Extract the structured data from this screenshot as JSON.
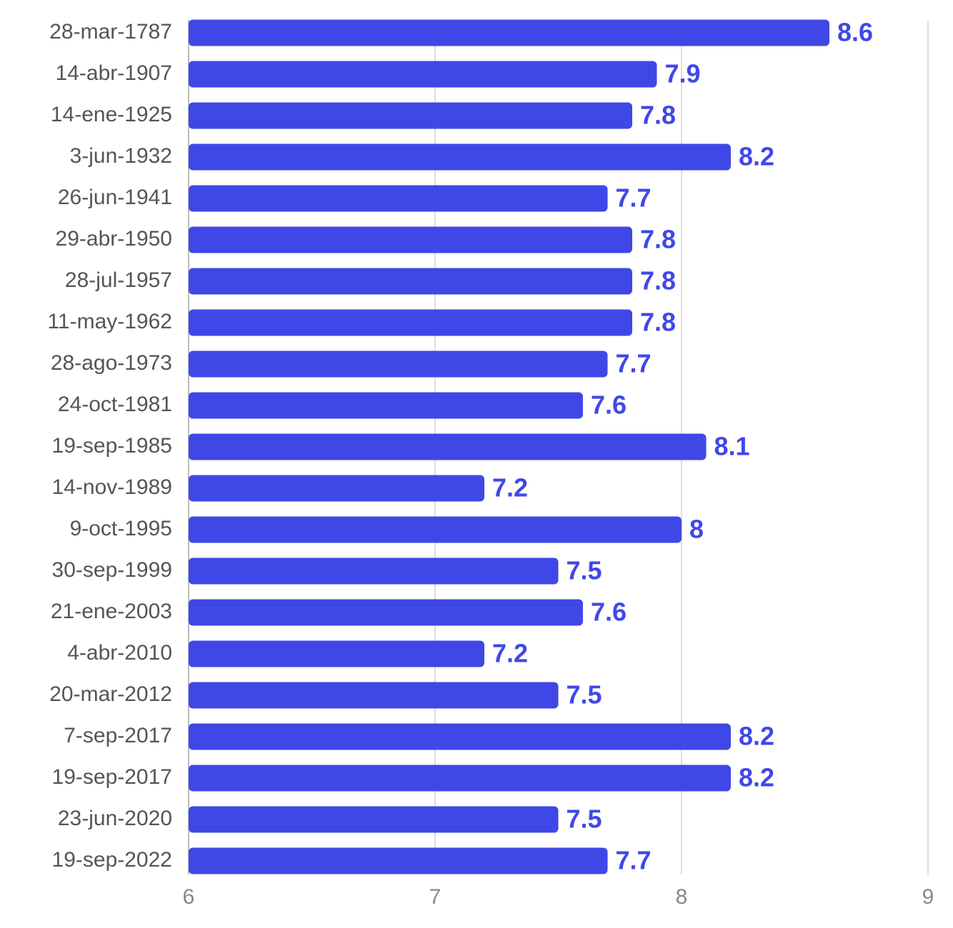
{
  "chart_data": {
    "type": "bar",
    "orientation": "horizontal",
    "color": "#3f48e6",
    "categories": [
      "28-mar-1787",
      "14-abr-1907",
      "14-ene-1925",
      "3-jun-1932",
      "26-jun-1941",
      "29-abr-1950",
      "28-jul-1957",
      "11-may-1962",
      "28-ago-1973",
      "24-oct-1981",
      "19-sep-1985",
      "14-nov-1989",
      "9-oct-1995",
      "30-sep-1999",
      "21-ene-2003",
      "4-abr-2010",
      "20-mar-2012",
      "7-sep-2017",
      "19-sep-2017",
      "23-jun-2020",
      "19-sep-2022"
    ],
    "values": [
      8.6,
      7.9,
      7.8,
      8.2,
      7.7,
      7.8,
      7.8,
      7.8,
      7.7,
      7.6,
      8.1,
      7.2,
      8,
      7.5,
      7.6,
      7.2,
      7.5,
      8.2,
      8.2,
      7.5,
      7.7
    ],
    "xlim": [
      6,
      9
    ],
    "xticks": [
      6,
      7,
      8,
      9
    ],
    "grid": true
  }
}
